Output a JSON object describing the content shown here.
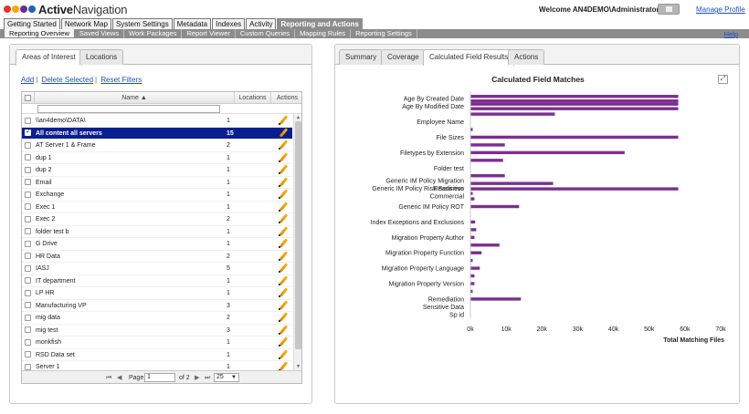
{
  "header": {
    "logo_text_1": "Active",
    "logo_text_2": "Navigation",
    "logo_dot_colors": [
      "#e6332a",
      "#f7a800",
      "#6b2c91",
      "#1e64b4"
    ],
    "welcome": "Welcome AN4DEMO\\Administrator",
    "manage_profile": "Manage Profile"
  },
  "topnav": {
    "tabs": [
      "Getting Started",
      "Network Map",
      "System Settings",
      "Metadata",
      "Indexes",
      "Activity",
      "Reporting and Actions"
    ],
    "active": "Reporting and Actions"
  },
  "subnav": {
    "items": [
      "Reporting Overview",
      "Saved Views",
      "Work Packages",
      "Report Viewer",
      "Custom Queries",
      "Mapping Rules",
      "Reporting Settings"
    ],
    "active": "Reporting Overview",
    "help": "Help"
  },
  "left_panel": {
    "tabs": [
      "Areas of Interest",
      "Locations"
    ],
    "links": {
      "add": "Add",
      "delete": "Delete Selected",
      "reset": "Reset Filters"
    },
    "columns": {
      "name": "Name",
      "locations": "Locations",
      "actions": "Actions"
    },
    "rows": [
      {
        "name": "\\\\an4demo\\DATA\\",
        "locations": "1",
        "selected": false
      },
      {
        "name": "All content all servers",
        "locations": "15",
        "selected": true
      },
      {
        "name": "AT Server 1 & Frame",
        "locations": "2",
        "selected": false
      },
      {
        "name": "dup 1",
        "locations": "1",
        "selected": false
      },
      {
        "name": "dup 2",
        "locations": "1",
        "selected": false
      },
      {
        "name": "Email",
        "locations": "1",
        "selected": false
      },
      {
        "name": "Exchange",
        "locations": "1",
        "selected": false
      },
      {
        "name": "Exec 1",
        "locations": "1",
        "selected": false
      },
      {
        "name": "Exec 2",
        "locations": "2",
        "selected": false
      },
      {
        "name": "folder test b",
        "locations": "1",
        "selected": false
      },
      {
        "name": "G Drive",
        "locations": "1",
        "selected": false
      },
      {
        "name": "HR Data",
        "locations": "2",
        "selected": false
      },
      {
        "name": "IASJ",
        "locations": "5",
        "selected": false
      },
      {
        "name": "IT department",
        "locations": "1",
        "selected": false
      },
      {
        "name": "LP HR",
        "locations": "1",
        "selected": false
      },
      {
        "name": "Manufacturing VP",
        "locations": "3",
        "selected": false
      },
      {
        "name": "mig data",
        "locations": "2",
        "selected": false
      },
      {
        "name": "mig test",
        "locations": "3",
        "selected": false
      },
      {
        "name": "monkfish",
        "locations": "1",
        "selected": false
      },
      {
        "name": "RSD Data set",
        "locations": "1",
        "selected": false
      },
      {
        "name": "Server 1",
        "locations": "1",
        "selected": false
      }
    ],
    "pager": {
      "page_label": "Page",
      "page_value": "1",
      "of_label": "of 2",
      "page_size": "25"
    }
  },
  "right_panel": {
    "tabs": [
      "Summary",
      "Coverage",
      "Calculated Field Results",
      "Actions"
    ],
    "active_tab": "Calculated Field Results"
  },
  "chart_data": {
    "type": "bar",
    "orientation": "horizontal",
    "title": "Calculated Field Matches",
    "xlabel": "Total Matching Files",
    "ylabel": "",
    "xlim": [
      0,
      70000
    ],
    "xticks": [
      "0k",
      "10k",
      "20k",
      "30k",
      "40k",
      "50k",
      "60k",
      "70k"
    ],
    "bar_color": "#7b2f8f",
    "grid": false,
    "categories": [
      {
        "label": "Age By Created Date",
        "values": [
          58000,
          58000
        ]
      },
      {
        "label": "Age By Modified Date",
        "values": [
          58000,
          58000
        ]
      },
      {
        "label": "",
        "values": [
          23500
        ]
      },
      {
        "label": "Employee Name",
        "values": []
      },
      {
        "label": "",
        "values": [
          500
        ]
      },
      {
        "label": "File Sizes",
        "values": [
          58000
        ]
      },
      {
        "label": "",
        "values": [
          9500
        ]
      },
      {
        "label": "Filetypes by Extension",
        "values": [
          43000
        ]
      },
      {
        "label": "",
        "values": [
          9000
        ]
      },
      {
        "label": "Folder test",
        "values": []
      },
      {
        "label": "",
        "values": [
          9500
        ]
      },
      {
        "label": "Generic IM Policy Migration Readiness",
        "values": [
          23000
        ]
      },
      {
        "label": "Generic IM Policy Risk Sensitive Commercial",
        "values": [
          58000,
          500
        ]
      },
      {
        "label": "",
        "values": [
          1000
        ]
      },
      {
        "label": "Generic IM Policy ROT",
        "values": [
          13500
        ]
      },
      {
        "label": "",
        "values": []
      },
      {
        "label": "Index Exceptions and Exclusions",
        "values": [
          1200
        ]
      },
      {
        "label": "",
        "values": [
          1500
        ]
      },
      {
        "label": "Migration Property Author",
        "values": [
          1000
        ]
      },
      {
        "label": "",
        "values": [
          8000
        ]
      },
      {
        "label": "Migration Property Function",
        "values": [
          3000
        ]
      },
      {
        "label": "",
        "values": [
          500
        ]
      },
      {
        "label": "Migration Property Language",
        "values": [
          2500
        ]
      },
      {
        "label": "",
        "values": [
          1000
        ]
      },
      {
        "label": "Migration Property Version",
        "values": [
          1000
        ]
      },
      {
        "label": "",
        "values": [
          500
        ]
      },
      {
        "label": "Remediation",
        "values": [
          14000
        ]
      },
      {
        "label": "Sensitive Data",
        "values": []
      },
      {
        "label": "Sp id",
        "values": []
      }
    ]
  }
}
